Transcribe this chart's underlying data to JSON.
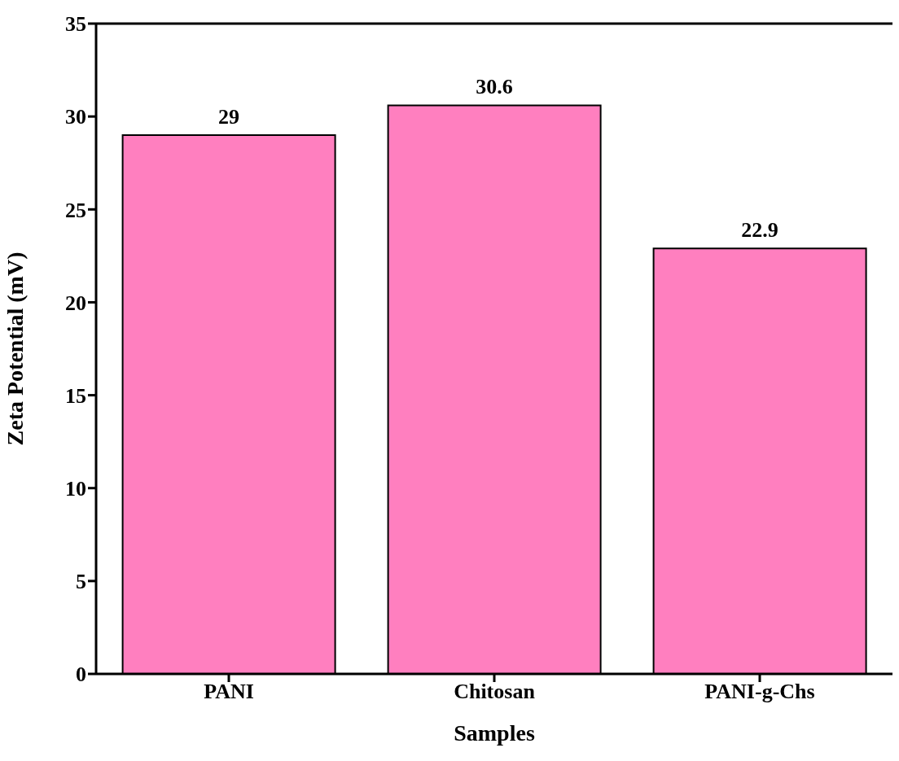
{
  "chart_data": {
    "type": "bar",
    "xlabel": "Samples",
    "ylabel": "Zeta Potential (mV)",
    "categories": [
      "PANI",
      "Chitosan",
      "PANI-g-Chs"
    ],
    "values": [
      29,
      30.6,
      22.9
    ],
    "color": "#ff7fbf",
    "ylim": [
      0,
      35
    ],
    "yticks": [
      0,
      5,
      10,
      15,
      20,
      25,
      30,
      35
    ],
    "grid": false,
    "data_labels": true
  }
}
